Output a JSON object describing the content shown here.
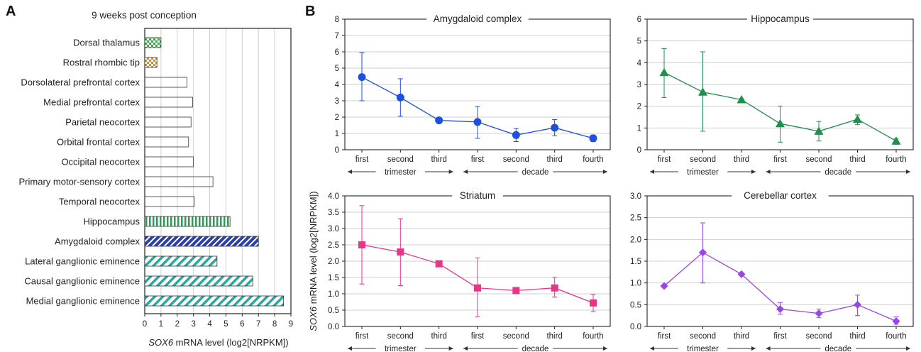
{
  "panels": {
    "a": "A",
    "b": "B"
  },
  "panel_a": {
    "title": "9 weeks post conception",
    "xlabel_italic": "SOX6",
    "xlabel_rest": " mRNA level (log2[NRPKM])"
  },
  "panel_b": {
    "ylabel_italic": "SOX6",
    "ylabel_rest": " mRNA level (log2[NRPKM])"
  },
  "colors": {
    "green_check": "#3aa845",
    "orange_check": "#c7903a",
    "lavender": "#d8b7f0",
    "hippo_green": "#2f9a58",
    "amyg_blue": "#2b3fa8",
    "teal": "#2aa89a",
    "blue": "#1f4fe0",
    "green": "#1f8f4f",
    "pink": "#e8358a",
    "purple": "#9a45e6"
  },
  "chart_data": [
    {
      "type": "bar",
      "orientation": "horizontal",
      "title": "9 weeks post conception",
      "xlabel": "SOX6 mRNA level (log2[NRPKM])",
      "xlim": [
        0,
        9
      ],
      "xticks": [
        0,
        1,
        2,
        3,
        4,
        5,
        6,
        7,
        8,
        9
      ],
      "grid": "vertical",
      "categories": [
        "Dorsal thalamus",
        "Rostral rhombic tip",
        "Dorsolateral prefrontal cortex",
        "Medial prefrontal cortex",
        "Parietal neocortex",
        "Orbital frontal cortex",
        "Occipital neocortex",
        "Primary motor-sensory cortex",
        "Temporal neocortex",
        "Hippocampus",
        "Amygdaloid complex",
        "Lateral ganglionic eminence",
        "Causal ganglionic eminence",
        "Medial ganglionic eminence"
      ],
      "values": [
        1.0,
        0.75,
        2.6,
        2.95,
        2.85,
        2.7,
        3.0,
        4.2,
        3.05,
        5.25,
        7.0,
        4.45,
        6.65,
        8.55
      ],
      "fills": [
        "check-green",
        "check-orange",
        "lavender",
        "lavender",
        "lavender",
        "lavender",
        "lavender",
        "lavender",
        "lavender",
        "vstripe-green",
        "diag-blue",
        "diag-teal",
        "diag-teal",
        "diag-teal"
      ]
    },
    {
      "type": "line",
      "title": "Amygdaloid complex",
      "color": "#1f4fe0",
      "marker": "circle",
      "x": [
        "first",
        "second",
        "third",
        "first",
        "second",
        "third",
        "fourth"
      ],
      "y": [
        4.45,
        3.2,
        1.8,
        1.7,
        0.9,
        1.35,
        0.7
      ],
      "err": [
        [
          3.0,
          5.95
        ],
        [
          2.05,
          4.35
        ],
        [
          1.75,
          1.85
        ],
        [
          0.7,
          2.65
        ],
        [
          0.5,
          1.3
        ],
        [
          0.85,
          1.85
        ],
        [
          0.5,
          0.9
        ]
      ],
      "ylim": [
        0,
        8
      ],
      "yticks": [
        0,
        1,
        2,
        3,
        4,
        5,
        6,
        7,
        8
      ],
      "groups": [
        {
          "label": "trimester",
          "span": [
            0,
            2
          ]
        },
        {
          "label": "decade",
          "span": [
            3,
            6
          ]
        }
      ],
      "grid": "horizontal"
    },
    {
      "type": "line",
      "title": "Hippocampus",
      "color": "#1f8f4f",
      "marker": "triangle",
      "x": [
        "first",
        "second",
        "third",
        "first",
        "second",
        "third",
        "fourth"
      ],
      "y": [
        3.55,
        2.65,
        2.3,
        1.2,
        0.85,
        1.4,
        0.4
      ],
      "err": [
        [
          2.4,
          4.65
        ],
        [
          0.85,
          4.5
        ],
        [
          2.25,
          2.35
        ],
        [
          0.35,
          2.0
        ],
        [
          0.4,
          1.3
        ],
        [
          1.15,
          1.6
        ],
        [
          0.25,
          0.5
        ]
      ],
      "ylim": [
        0,
        6
      ],
      "yticks": [
        0,
        1,
        2,
        3,
        4,
        5,
        6
      ],
      "groups": [
        {
          "label": "trimester",
          "span": [
            0,
            2
          ]
        },
        {
          "label": "decade",
          "span": [
            3,
            6
          ]
        }
      ],
      "grid": "horizontal"
    },
    {
      "type": "line",
      "title": "Striatum",
      "color": "#e8358a",
      "marker": "square",
      "x": [
        "first",
        "second",
        "third",
        "first",
        "second",
        "third",
        "fourth"
      ],
      "y": [
        2.5,
        2.28,
        1.92,
        1.18,
        1.1,
        1.18,
        0.72
      ],
      "err": [
        [
          1.3,
          3.7
        ],
        [
          1.25,
          3.3
        ],
        [
          1.88,
          1.96
        ],
        [
          0.3,
          2.1
        ],
        [
          1.05,
          1.15
        ],
        [
          0.9,
          1.5
        ],
        [
          0.45,
          0.98
        ]
      ],
      "ylim": [
        0,
        4
      ],
      "yticks": [
        "0.0",
        "0.5",
        "1.0",
        "1.5",
        "2.0",
        "2.5",
        "3.0",
        "3.5",
        "4.0"
      ],
      "groups": [
        {
          "label": "trimester",
          "span": [
            0,
            2
          ]
        },
        {
          "label": "decade",
          "span": [
            3,
            6
          ]
        }
      ],
      "grid": "horizontal"
    },
    {
      "type": "line",
      "title": "Cerebellar cortex",
      "color": "#9a45e6",
      "marker": "diamond",
      "x": [
        "first",
        "second",
        "third",
        "first",
        "second",
        "third",
        "fourth"
      ],
      "y": [
        0.93,
        1.7,
        1.2,
        0.4,
        0.3,
        0.5,
        0.12
      ],
      "err": [
        [
          0.9,
          0.96
        ],
        [
          1.0,
          2.38
        ],
        [
          1.17,
          1.23
        ],
        [
          0.28,
          0.55
        ],
        [
          0.2,
          0.4
        ],
        [
          0.25,
          0.72
        ],
        [
          0.05,
          0.22
        ]
      ],
      "ylim": [
        0,
        3
      ],
      "yticks": [
        "0.0",
        "0.5",
        "1.0",
        "1.5",
        "2.0",
        "2.5",
        "3.0"
      ],
      "groups": [
        {
          "label": "trimester",
          "span": [
            0,
            2
          ]
        },
        {
          "label": "decade",
          "span": [
            3,
            6
          ]
        }
      ],
      "grid": "horizontal"
    }
  ]
}
